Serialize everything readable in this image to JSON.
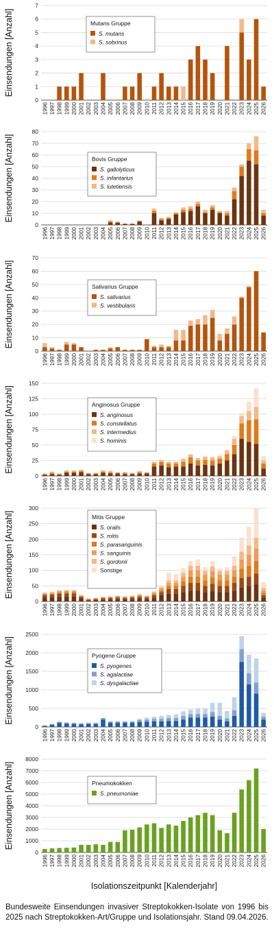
{
  "caption": "Bundesweite Einsendungen invasiver Streptokokken-Isolate von 1996 bis 2025 nach Streptokokken-Art/Gruppe und Isolationsjahr. Stand 09.04.2026.",
  "xlabel": "Isolationszeitpunkt [Kalenderjahr]",
  "years": [
    "1996",
    "1997",
    "1998",
    "1999",
    "2000",
    "2001",
    "2002",
    "2003",
    "2004",
    "2005",
    "2006",
    "2007",
    "2008",
    "2009",
    "2010",
    "2011",
    "2012",
    "2013",
    "2014",
    "2015",
    "2016",
    "2017",
    "2018",
    "2019",
    "2020",
    "2021",
    "2022",
    "2023",
    "2024",
    "2025",
    "2026"
  ],
  "chart_data": [
    {
      "type": "bar",
      "stacked": true,
      "ylabel": "Einsendungen [Anzahl]",
      "ylim": [
        0,
        7
      ],
      "yticks": [
        0,
        1,
        2,
        3,
        4,
        5,
        6,
        7
      ],
      "legend_title": "Mutans Gruppe",
      "legend_placement": "top-left",
      "series": [
        {
          "name": "S. mutans",
          "color": "#B5540D",
          "values": [
            0,
            0,
            1,
            1,
            1,
            2,
            0,
            0,
            2,
            0,
            0,
            1,
            1,
            2,
            0,
            1,
            2,
            1,
            1,
            0,
            3,
            4,
            3,
            2,
            0,
            4,
            0,
            5,
            3,
            6,
            1
          ]
        },
        {
          "name": "S. sobrinus",
          "color": "#F2B98A",
          "values": [
            0,
            0,
            0,
            0,
            0,
            0,
            0,
            0,
            0,
            0,
            0,
            0,
            0,
            0,
            0,
            0,
            0,
            0,
            0,
            1,
            0,
            0,
            0,
            0,
            0,
            0,
            0,
            1,
            0,
            0,
            0
          ]
        }
      ]
    },
    {
      "type": "bar",
      "stacked": true,
      "ylabel": "Einsendungen [Anzahl]",
      "ylim": [
        0,
        80
      ],
      "yticks": [
        0,
        10,
        20,
        30,
        40,
        50,
        60,
        70,
        80
      ],
      "legend_title": "Bovis Gruppe",
      "legend_placement": "top-left",
      "series": [
        {
          "name": "S. gallolyticus",
          "color": "#6B3410",
          "values": [
            0,
            0,
            0,
            0,
            0,
            0,
            0,
            0,
            0,
            2,
            2,
            1,
            1,
            3,
            0,
            10,
            4,
            5,
            9,
            11,
            12,
            16,
            10,
            13,
            10,
            8,
            22,
            42,
            55,
            52,
            8
          ]
        },
        {
          "name": "S. infantarius",
          "color": "#E07B1A",
          "values": [
            0,
            0,
            0,
            0,
            0,
            0,
            0,
            0,
            0,
            1,
            0,
            0,
            0,
            0,
            0,
            2,
            1,
            1,
            1,
            2,
            2,
            2,
            1,
            2,
            1,
            2,
            7,
            8,
            10,
            12,
            2
          ]
        },
        {
          "name": "S. lutetiensis",
          "color": "#F2B98A",
          "values": [
            0,
            0,
            0,
            0,
            0,
            0,
            0,
            0,
            0,
            1,
            1,
            0,
            0,
            1,
            0,
            2,
            1,
            1,
            1,
            2,
            2,
            2,
            2,
            2,
            1,
            2,
            3,
            2,
            5,
            12,
            3
          ]
        }
      ]
    },
    {
      "type": "bar",
      "stacked": true,
      "ylabel": "Einsendungen [Anzahl]",
      "ylim": [
        0,
        70
      ],
      "yticks": [
        0,
        10,
        20,
        30,
        40,
        50,
        60,
        70
      ],
      "legend_title": "Salivarius Gruppe",
      "legend_placement": "top-left",
      "series": [
        {
          "name": "S. salivarius",
          "color": "#B5540D",
          "values": [
            3,
            2,
            1,
            5,
            5,
            3,
            0,
            1,
            1,
            2,
            3,
            1,
            1,
            1,
            9,
            3,
            3,
            3,
            8,
            8,
            19,
            20,
            20,
            25,
            8,
            13,
            20,
            40,
            48,
            60,
            14
          ]
        },
        {
          "name": "S. vestibularis",
          "color": "#F2B98A",
          "values": [
            3,
            1,
            0,
            2,
            1,
            0,
            0,
            0,
            0,
            1,
            0,
            0,
            0,
            0,
            0,
            1,
            2,
            1,
            8,
            8,
            4,
            4,
            7,
            6,
            5,
            4,
            6,
            1,
            1,
            0,
            0
          ]
        }
      ]
    },
    {
      "type": "bar",
      "stacked": true,
      "ylabel": "Einsendungen [Anzahl]",
      "ylim": [
        0,
        150
      ],
      "yticks": [
        0,
        25,
        50,
        75,
        100,
        125,
        150
      ],
      "legend_title": "Anginosus Gruppe",
      "legend_placement": "top-left",
      "series": [
        {
          "name": "S. anginosus",
          "color": "#6B3410",
          "values": [
            2,
            3,
            2,
            5,
            5,
            6,
            3,
            3,
            5,
            4,
            4,
            3,
            3,
            4,
            4,
            15,
            17,
            14,
            15,
            15,
            20,
            17,
            18,
            17,
            20,
            25,
            35,
            60,
            55,
            52,
            12
          ]
        },
        {
          "name": "S. constellatus",
          "color": "#E07B1A",
          "values": [
            1,
            2,
            1,
            2,
            2,
            2,
            1,
            1,
            2,
            2,
            1,
            2,
            1,
            2,
            1,
            5,
            6,
            6,
            5,
            8,
            10,
            8,
            8,
            8,
            8,
            10,
            15,
            25,
            35,
            40,
            8
          ]
        },
        {
          "name": "S. intermedius",
          "color": "#F2B98A",
          "values": [
            1,
            2,
            1,
            2,
            2,
            2,
            1,
            1,
            2,
            2,
            1,
            1,
            1,
            2,
            1,
            3,
            3,
            3,
            3,
            5,
            5,
            4,
            5,
            5,
            4,
            6,
            10,
            12,
            15,
            20,
            5
          ]
        },
        {
          "name": "S. hominis",
          "color": "#FBE0CA",
          "values": [
            0,
            0,
            0,
            0,
            0,
            0,
            0,
            0,
            0,
            0,
            0,
            0,
            0,
            0,
            0,
            0,
            0,
            0,
            0,
            0,
            0,
            0,
            1,
            1,
            2,
            2,
            5,
            5,
            15,
            30,
            7
          ]
        }
      ]
    },
    {
      "type": "bar",
      "stacked": true,
      "ylabel": "Einsendungen [Anzahl]",
      "ylim": [
        0,
        300
      ],
      "yticks": [
        0,
        50,
        100,
        150,
        200,
        250,
        300
      ],
      "legend_title": "Mitis Gruppe",
      "legend_placement": "top-left",
      "series": [
        {
          "name": "S. oralis",
          "color": "#6B3410",
          "values": [
            12,
            14,
            15,
            16,
            16,
            10,
            4,
            5,
            6,
            7,
            8,
            7,
            8,
            10,
            8,
            12,
            20,
            25,
            25,
            30,
            35,
            35,
            30,
            32,
            30,
            30,
            35,
            45,
            50,
            55,
            12
          ]
        },
        {
          "name": "S. mitis",
          "color": "#9A4A14",
          "values": [
            8,
            8,
            10,
            10,
            10,
            5,
            2,
            3,
            4,
            4,
            5,
            4,
            5,
            5,
            5,
            8,
            10,
            15,
            15,
            20,
            25,
            25,
            20,
            25,
            20,
            20,
            25,
            30,
            30,
            35,
            8
          ]
        },
        {
          "name": "S. parasanguinis",
          "color": "#E07B1A",
          "values": [
            3,
            3,
            4,
            4,
            4,
            2,
            1,
            1,
            2,
            2,
            2,
            2,
            2,
            3,
            2,
            4,
            6,
            10,
            10,
            15,
            20,
            20,
            18,
            20,
            18,
            18,
            20,
            30,
            35,
            40,
            8
          ]
        },
        {
          "name": "S. sanguinis",
          "color": "#F09A55",
          "values": [
            3,
            3,
            4,
            4,
            4,
            2,
            1,
            1,
            2,
            2,
            2,
            2,
            2,
            3,
            2,
            4,
            6,
            10,
            10,
            15,
            20,
            20,
            18,
            20,
            18,
            18,
            20,
            30,
            35,
            40,
            8
          ]
        },
        {
          "name": "S. gordonii",
          "color": "#F2B98A",
          "values": [
            2,
            2,
            2,
            2,
            2,
            1,
            1,
            1,
            1,
            1,
            1,
            1,
            1,
            2,
            1,
            3,
            4,
            8,
            8,
            12,
            15,
            15,
            12,
            15,
            12,
            12,
            15,
            25,
            30,
            35,
            8
          ]
        },
        {
          "name": "Sonstige",
          "color": "#FBE0CA",
          "values": [
            2,
            2,
            2,
            2,
            2,
            1,
            1,
            1,
            1,
            1,
            1,
            1,
            1,
            2,
            1,
            2,
            4,
            25,
            20,
            15,
            15,
            20,
            12,
            18,
            8,
            12,
            30,
            45,
            60,
            95,
            18
          ]
        }
      ]
    },
    {
      "type": "bar",
      "stacked": true,
      "ylabel": "Einsendungen [Anzahl]",
      "ylim": [
        0,
        2500
      ],
      "yticks": [
        0,
        500,
        1000,
        1500,
        2000,
        2500
      ],
      "legend_title": "Pyogene Gruppe",
      "legend_placement": "top-left",
      "series": [
        {
          "name": "S. pyogenes",
          "color": "#1F5AA6",
          "values": [
            30,
            60,
            110,
            90,
            80,
            70,
            80,
            80,
            200,
            110,
            110,
            110,
            110,
            130,
            140,
            150,
            150,
            160,
            160,
            200,
            250,
            250,
            250,
            280,
            200,
            150,
            300,
            1750,
            1150,
            900,
            200
          ]
        },
        {
          "name": "S. agalactiae",
          "color": "#7FA3CC",
          "values": [
            10,
            20,
            30,
            30,
            30,
            30,
            30,
            30,
            40,
            40,
            40,
            40,
            40,
            60,
            60,
            70,
            70,
            80,
            80,
            100,
            100,
            100,
            100,
            120,
            100,
            80,
            150,
            350,
            300,
            300,
            80
          ]
        },
        {
          "name": "S. dysgalactiae",
          "color": "#BFD3EA",
          "values": [
            0,
            0,
            0,
            0,
            0,
            0,
            0,
            0,
            0,
            0,
            0,
            0,
            0,
            30,
            50,
            60,
            80,
            80,
            100,
            120,
            120,
            150,
            150,
            250,
            350,
            200,
            350,
            350,
            500,
            650,
            100
          ]
        }
      ]
    },
    {
      "type": "bar",
      "stacked": true,
      "ylabel": "Einsendungen [Anzahl]",
      "ylim": [
        0,
        8000
      ],
      "yticks": [
        0,
        1000,
        2000,
        3000,
        4000,
        5000,
        6000,
        7000,
        8000
      ],
      "legend_title": "Pneumokokken",
      "legend_placement": "top-left",
      "series": [
        {
          "name": "S. pneumoniae",
          "color": "#6AA121",
          "values": [
            300,
            350,
            380,
            400,
            420,
            650,
            650,
            700,
            650,
            900,
            900,
            1900,
            1950,
            2150,
            2400,
            2500,
            2100,
            2400,
            2300,
            2700,
            3000,
            3200,
            3400,
            3200,
            1900,
            1650,
            3400,
            5400,
            6200,
            7200,
            2000
          ]
        }
      ]
    }
  ]
}
